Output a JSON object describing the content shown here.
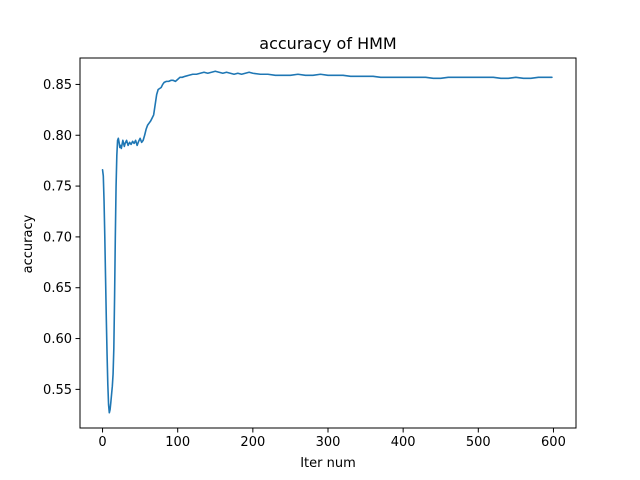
{
  "chart_data": {
    "type": "line",
    "title": "accuracy of HMM",
    "xlabel": "Iter num",
    "ylabel": "accuracy",
    "xlim": [
      -30,
      630
    ],
    "ylim": [
      0.512,
      0.876
    ],
    "xticks": [
      0,
      100,
      200,
      300,
      400,
      500,
      600
    ],
    "xtick_labels": [
      "0",
      "100",
      "200",
      "300",
      "400",
      "500",
      "600"
    ],
    "yticks": [
      0.55,
      0.6,
      0.65,
      0.7,
      0.75,
      0.8,
      0.85
    ],
    "ytick_labels": [
      "0.55",
      "0.60",
      "0.65",
      "0.70",
      "0.75",
      "0.80",
      "0.85"
    ],
    "grid": false,
    "series": [
      {
        "color": "#1f77b4",
        "x": [
          0,
          1,
          2,
          3,
          4,
          5,
          6,
          7,
          8,
          9,
          10,
          11,
          12,
          13,
          14,
          15,
          16,
          17,
          18,
          19,
          20,
          21,
          22,
          23,
          24,
          25,
          26,
          27,
          28,
          29,
          30,
          32,
          34,
          36,
          38,
          40,
          42,
          44,
          46,
          48,
          50,
          52,
          54,
          56,
          58,
          60,
          62,
          64,
          66,
          68,
          70,
          72,
          74,
          76,
          78,
          80,
          82,
          85,
          88,
          91,
          94,
          97,
          100,
          103,
          106,
          110,
          115,
          120,
          125,
          130,
          135,
          140,
          145,
          150,
          155,
          160,
          165,
          170,
          175,
          180,
          185,
          190,
          195,
          200,
          210,
          220,
          230,
          240,
          250,
          260,
          270,
          280,
          290,
          300,
          310,
          320,
          330,
          340,
          350,
          360,
          370,
          380,
          390,
          400,
          410,
          420,
          430,
          440,
          450,
          460,
          470,
          480,
          490,
          500,
          510,
          520,
          530,
          540,
          550,
          560,
          570,
          580,
          590,
          598
        ],
        "y": [
          0.766,
          0.76,
          0.735,
          0.7,
          0.66,
          0.62,
          0.585,
          0.555,
          0.535,
          0.527,
          0.53,
          0.537,
          0.545,
          0.553,
          0.565,
          0.59,
          0.64,
          0.7,
          0.75,
          0.78,
          0.795,
          0.797,
          0.793,
          0.788,
          0.79,
          0.787,
          0.791,
          0.795,
          0.792,
          0.789,
          0.792,
          0.795,
          0.79,
          0.793,
          0.791,
          0.794,
          0.792,
          0.795,
          0.79,
          0.794,
          0.797,
          0.793,
          0.795,
          0.8,
          0.806,
          0.81,
          0.812,
          0.814,
          0.817,
          0.82,
          0.83,
          0.84,
          0.845,
          0.846,
          0.847,
          0.85,
          0.852,
          0.853,
          0.853,
          0.854,
          0.854,
          0.853,
          0.855,
          0.857,
          0.857,
          0.858,
          0.859,
          0.86,
          0.86,
          0.861,
          0.862,
          0.861,
          0.862,
          0.863,
          0.862,
          0.861,
          0.862,
          0.861,
          0.86,
          0.861,
          0.86,
          0.861,
          0.862,
          0.861,
          0.86,
          0.86,
          0.859,
          0.859,
          0.859,
          0.86,
          0.859,
          0.859,
          0.86,
          0.859,
          0.859,
          0.859,
          0.858,
          0.858,
          0.858,
          0.858,
          0.857,
          0.857,
          0.857,
          0.857,
          0.857,
          0.857,
          0.857,
          0.856,
          0.856,
          0.857,
          0.857,
          0.857,
          0.857,
          0.857,
          0.857,
          0.857,
          0.856,
          0.856,
          0.857,
          0.856,
          0.856,
          0.857,
          0.857,
          0.857
        ]
      }
    ]
  }
}
